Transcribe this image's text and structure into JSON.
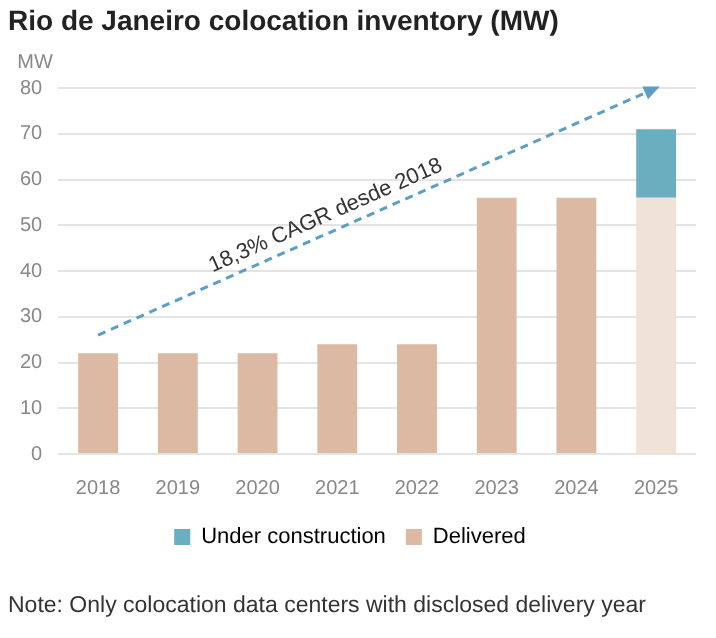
{
  "chart_data": {
    "type": "bar",
    "title": "Rio de Janeiro colocation inventory (MW)",
    "ylabel": "MW",
    "categories": [
      "2018",
      "2019",
      "2020",
      "2021",
      "2022",
      "2023",
      "2024",
      "2025"
    ],
    "series": [
      {
        "name": "Delivered",
        "color": "#dbb9a3",
        "colors": [
          "#dbb9a3",
          "#dbb9a3",
          "#dbb9a3",
          "#dbb9a3",
          "#dbb9a3",
          "#dbb9a3",
          "#dbb9a3",
          "#f1e2d8"
        ],
        "values": [
          22,
          22,
          22,
          24,
          24,
          56,
          56,
          56
        ]
      },
      {
        "name": "Under construction",
        "color": "#6aaebf",
        "values": [
          null,
          null,
          null,
          null,
          null,
          null,
          null,
          15
        ]
      },
      {
        "type": "line",
        "color": "#5b9fc6",
        "values": [
          26,
          null,
          null,
          null,
          null,
          null,
          null,
          80
        ],
        "line_style": "dashed"
      }
    ],
    "stacked": true,
    "ylim": [
      0,
      80
    ],
    "yticks": [
      0,
      10,
      20,
      30,
      40,
      50,
      60,
      70,
      80
    ],
    "grid": "y",
    "legend": "bottom",
    "annotations": [
      "18,3% CAGR desde 2018",
      "Note: Only colocation data centers with disclosed delivery year"
    ]
  }
}
